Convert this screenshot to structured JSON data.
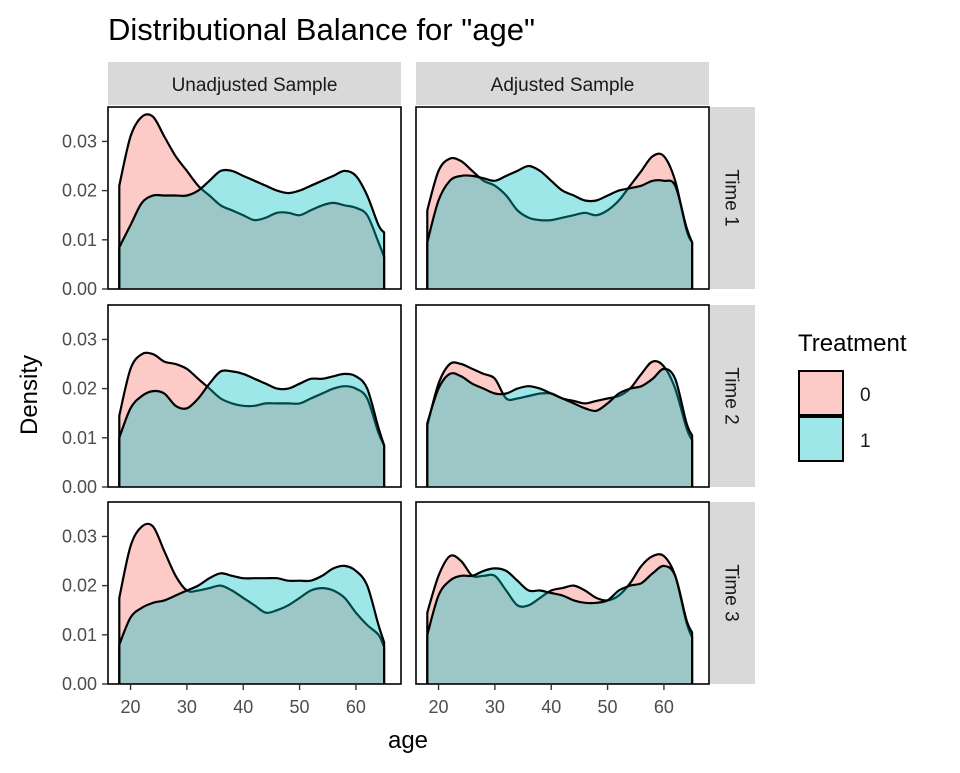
{
  "chart_data": {
    "type": "area",
    "title": "Distributional Balance for \"age\"",
    "xlabel": "age",
    "ylabel": "Density",
    "xlim": [
      16,
      68
    ],
    "ylim": [
      0,
      0.037
    ],
    "x_ticks": [
      20,
      30,
      40,
      50,
      60
    ],
    "y_ticks": [
      0.0,
      0.01,
      0.02,
      0.03
    ],
    "y_tick_labels": [
      "0.00",
      "0.01",
      "0.02",
      "0.03"
    ],
    "columns": [
      "Unadjusted Sample",
      "Adjusted Sample"
    ],
    "rows": [
      "Time 1",
      "Time 2",
      "Time 3"
    ],
    "legend": {
      "title": "Treatment",
      "position": "right",
      "entries": [
        {
          "label": "0",
          "color": "#F8766D"
        },
        {
          "label": "1",
          "color": "#00BFC4"
        }
      ]
    },
    "x": [
      18,
      20,
      22,
      24,
      26,
      28,
      30,
      32,
      34,
      36,
      38,
      40,
      42,
      44,
      46,
      48,
      50,
      52,
      54,
      56,
      58,
      60,
      62,
      64,
      65
    ],
    "panels": [
      {
        "row": "Time 1",
        "column": "Unadjusted Sample",
        "series": [
          {
            "name": "0",
            "values": [
              0.021,
              0.031,
              0.035,
              0.035,
              0.031,
              0.027,
              0.024,
              0.021,
              0.019,
              0.017,
              0.016,
              0.015,
              0.014,
              0.0145,
              0.0155,
              0.0155,
              0.015,
              0.016,
              0.017,
              0.0175,
              0.017,
              0.0165,
              0.015,
              0.0095,
              0.0065
            ]
          },
          {
            "name": "1",
            "values": [
              0.0085,
              0.013,
              0.0175,
              0.019,
              0.019,
              0.019,
              0.019,
              0.02,
              0.022,
              0.024,
              0.024,
              0.023,
              0.022,
              0.021,
              0.02,
              0.0195,
              0.02,
              0.021,
              0.022,
              0.023,
              0.024,
              0.023,
              0.019,
              0.013,
              0.0115
            ]
          }
        ]
      },
      {
        "row": "Time 1",
        "column": "Adjusted Sample",
        "series": [
          {
            "name": "0",
            "values": [
              0.016,
              0.024,
              0.0265,
              0.026,
              0.024,
              0.022,
              0.021,
              0.019,
              0.016,
              0.0145,
              0.014,
              0.014,
              0.0145,
              0.015,
              0.0155,
              0.015,
              0.016,
              0.018,
              0.021,
              0.024,
              0.027,
              0.027,
              0.022,
              0.012,
              0.0095
            ]
          },
          {
            "name": "1",
            "values": [
              0.0095,
              0.018,
              0.022,
              0.023,
              0.023,
              0.0225,
              0.022,
              0.023,
              0.024,
              0.025,
              0.024,
              0.022,
              0.02,
              0.019,
              0.018,
              0.018,
              0.019,
              0.02,
              0.0205,
              0.021,
              0.022,
              0.022,
              0.021,
              0.0125,
              0.0095
            ]
          }
        ]
      },
      {
        "row": "Time 2",
        "column": "Unadjusted Sample",
        "series": [
          {
            "name": "0",
            "values": [
              0.0145,
              0.024,
              0.027,
              0.027,
              0.0255,
              0.025,
              0.024,
              0.022,
              0.02,
              0.018,
              0.017,
              0.0165,
              0.0165,
              0.017,
              0.017,
              0.017,
              0.017,
              0.018,
              0.019,
              0.02,
              0.0205,
              0.02,
              0.018,
              0.011,
              0.0085
            ]
          },
          {
            "name": "1",
            "values": [
              0.01,
              0.016,
              0.0185,
              0.0195,
              0.019,
              0.0165,
              0.016,
              0.018,
              0.021,
              0.0235,
              0.0235,
              0.023,
              0.022,
              0.021,
              0.02,
              0.02,
              0.021,
              0.022,
              0.022,
              0.0225,
              0.023,
              0.0225,
              0.02,
              0.012,
              0.0085
            ]
          }
        ]
      },
      {
        "row": "Time 2",
        "column": "Adjusted Sample",
        "series": [
          {
            "name": "0",
            "values": [
              0.0125,
              0.021,
              0.025,
              0.025,
              0.024,
              0.023,
              0.022,
              0.018,
              0.018,
              0.0185,
              0.019,
              0.019,
              0.018,
              0.0175,
              0.017,
              0.0175,
              0.018,
              0.0185,
              0.02,
              0.023,
              0.0255,
              0.0245,
              0.02,
              0.012,
              0.0095
            ]
          },
          {
            "name": "1",
            "values": [
              0.013,
              0.02,
              0.023,
              0.0225,
              0.021,
              0.02,
              0.019,
              0.019,
              0.02,
              0.0205,
              0.02,
              0.019,
              0.018,
              0.017,
              0.016,
              0.0155,
              0.017,
              0.019,
              0.02,
              0.0205,
              0.022,
              0.024,
              0.022,
              0.013,
              0.0105
            ]
          }
        ]
      },
      {
        "row": "Time 3",
        "column": "Unadjusted Sample",
        "series": [
          {
            "name": "0",
            "values": [
              0.0175,
              0.028,
              0.032,
              0.032,
              0.027,
              0.022,
              0.019,
              0.019,
              0.0195,
              0.02,
              0.019,
              0.0175,
              0.016,
              0.0145,
              0.015,
              0.016,
              0.0175,
              0.019,
              0.0195,
              0.019,
              0.0175,
              0.0145,
              0.012,
              0.01,
              0.0075
            ]
          },
          {
            "name": "1",
            "values": [
              0.008,
              0.0135,
              0.0155,
              0.0165,
              0.017,
              0.018,
              0.019,
              0.02,
              0.0215,
              0.0225,
              0.022,
              0.0215,
              0.0215,
              0.0215,
              0.0215,
              0.021,
              0.021,
              0.021,
              0.022,
              0.0235,
              0.024,
              0.023,
              0.02,
              0.012,
              0.0085
            ]
          }
        ]
      },
      {
        "row": "Time 3",
        "column": "Adjusted Sample",
        "series": [
          {
            "name": "0",
            "values": [
              0.0145,
              0.022,
              0.026,
              0.025,
              0.022,
              0.022,
              0.022,
              0.019,
              0.016,
              0.016,
              0.0175,
              0.019,
              0.0195,
              0.02,
              0.019,
              0.0175,
              0.017,
              0.018,
              0.0205,
              0.024,
              0.026,
              0.026,
              0.022,
              0.0125,
              0.0095
            ]
          },
          {
            "name": "1",
            "values": [
              0.01,
              0.018,
              0.021,
              0.022,
              0.022,
              0.023,
              0.0235,
              0.023,
              0.021,
              0.019,
              0.019,
              0.0185,
              0.018,
              0.017,
              0.0165,
              0.0165,
              0.017,
              0.019,
              0.02,
              0.0205,
              0.0225,
              0.024,
              0.022,
              0.013,
              0.0105
            ]
          }
        ]
      }
    ]
  }
}
